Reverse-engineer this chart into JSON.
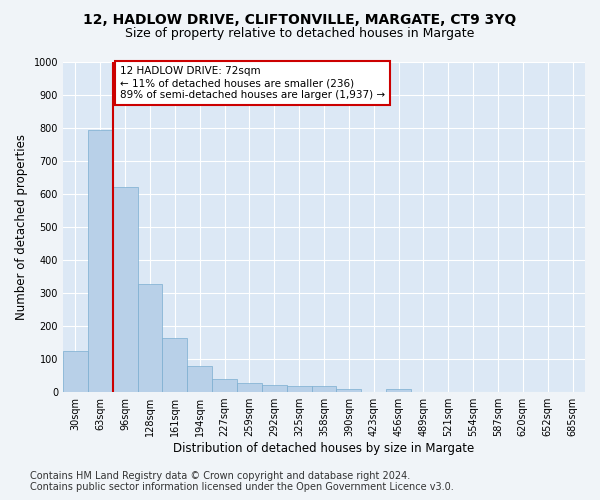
{
  "title1": "12, HADLOW DRIVE, CLIFTONVILLE, MARGATE, CT9 3YQ",
  "title2": "Size of property relative to detached houses in Margate",
  "xlabel": "Distribution of detached houses by size in Margate",
  "ylabel": "Number of detached properties",
  "categories": [
    "30sqm",
    "63sqm",
    "96sqm",
    "128sqm",
    "161sqm",
    "194sqm",
    "227sqm",
    "259sqm",
    "292sqm",
    "325sqm",
    "358sqm",
    "390sqm",
    "423sqm",
    "456sqm",
    "489sqm",
    "521sqm",
    "554sqm",
    "587sqm",
    "620sqm",
    "652sqm",
    "685sqm"
  ],
  "values": [
    125,
    793,
    620,
    328,
    163,
    78,
    40,
    27,
    20,
    17,
    17,
    10,
    0,
    10,
    0,
    0,
    0,
    0,
    0,
    0,
    0
  ],
  "bar_color": "#b8d0e8",
  "bar_edge_color": "#7aaed0",
  "vline_x": 1.5,
  "vline_color": "#cc0000",
  "annotation_text": "12 HADLOW DRIVE: 72sqm\n← 11% of detached houses are smaller (236)\n89% of semi-detached houses are larger (1,937) →",
  "annotation_box_color": "#ffffff",
  "annotation_box_edge": "#cc0000",
  "ylim": [
    0,
    1000
  ],
  "yticks": [
    0,
    100,
    200,
    300,
    400,
    500,
    600,
    700,
    800,
    900,
    1000
  ],
  "footer": "Contains HM Land Registry data © Crown copyright and database right 2024.\nContains public sector information licensed under the Open Government Licence v3.0.",
  "bg_color": "#f0f4f8",
  "plot_bg_color": "#dce8f5",
  "grid_color": "#ffffff",
  "title_fontsize": 10,
  "subtitle_fontsize": 9,
  "tick_fontsize": 7,
  "label_fontsize": 8.5,
  "footer_fontsize": 7
}
